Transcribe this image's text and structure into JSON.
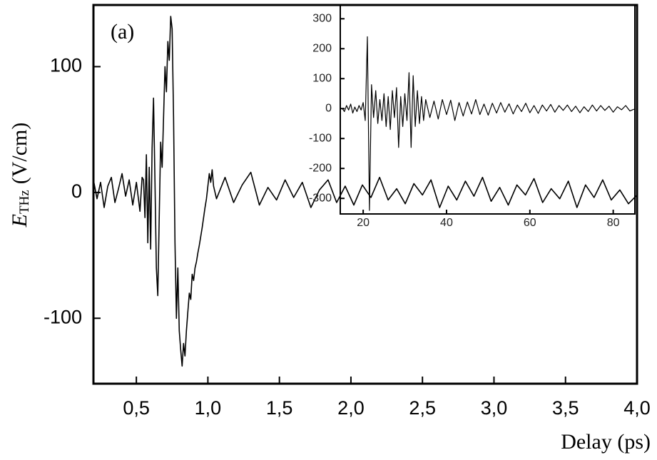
{
  "chart_data": [
    {
      "type": "line",
      "annotation": "(a)",
      "xlabel": "Delay (ps)",
      "ylabel": [
        "E",
        "THz",
        "(V/cm)"
      ],
      "xlim": [
        0.2,
        4.0
      ],
      "ylim": [
        -152,
        149
      ],
      "xticks": [
        {
          "value": 0.5,
          "label": "0,5"
        },
        {
          "value": 1.0,
          "label": "1,0"
        },
        {
          "value": 1.5,
          "label": "1,5"
        },
        {
          "value": 2.0,
          "label": "2,0"
        },
        {
          "value": 2.5,
          "label": "2,5"
        },
        {
          "value": 3.0,
          "label": "3,0"
        },
        {
          "value": 3.5,
          "label": "3,5"
        },
        {
          "value": 4.0,
          "label": "4,0"
        }
      ],
      "yticks": [
        -100,
        0,
        100
      ],
      "x": [
        0.2,
        0.225,
        0.25,
        0.275,
        0.3,
        0.325,
        0.35,
        0.375,
        0.4,
        0.425,
        0.45,
        0.475,
        0.5,
        0.525,
        0.54,
        0.55,
        0.56,
        0.57,
        0.58,
        0.59,
        0.6,
        0.61,
        0.62,
        0.63,
        0.64,
        0.65,
        0.66,
        0.67,
        0.68,
        0.69,
        0.7,
        0.71,
        0.72,
        0.73,
        0.74,
        0.75,
        0.76,
        0.77,
        0.78,
        0.79,
        0.8,
        0.81,
        0.82,
        0.83,
        0.84,
        0.85,
        0.86,
        0.87,
        0.88,
        0.89,
        0.9,
        0.91,
        0.92,
        0.93,
        0.94,
        0.95,
        0.96,
        0.97,
        0.98,
        0.99,
        1.0,
        1.01,
        1.02,
        1.03,
        1.04,
        1.06,
        1.12,
        1.18,
        1.24,
        1.3,
        1.36,
        1.42,
        1.48,
        1.54,
        1.6,
        1.66,
        1.72,
        1.78,
        1.84,
        1.9,
        1.96,
        2.02,
        2.08,
        2.14,
        2.2,
        2.26,
        2.32,
        2.38,
        2.44,
        2.5,
        2.56,
        2.62,
        2.68,
        2.74,
        2.8,
        2.86,
        2.92,
        2.98,
        3.04,
        3.1,
        3.16,
        3.22,
        3.28,
        3.34,
        3.4,
        3.46,
        3.52,
        3.58,
        3.64,
        3.7,
        3.76,
        3.82,
        3.88,
        3.94,
        4.0
      ],
      "series": [
        {
          "name": null,
          "color": "#000000",
          "values": [
            10,
            -5,
            8,
            -12,
            5,
            12,
            -8,
            3,
            15,
            -3,
            10,
            -10,
            8,
            -15,
            12,
            10,
            -20,
            30,
            -40,
            20,
            -45,
            35,
            75,
            10,
            -60,
            -82,
            -20,
            40,
            20,
            60,
            100,
            80,
            120,
            105,
            140,
            130,
            60,
            -40,
            -100,
            -60,
            -110,
            -125,
            -138,
            -120,
            -130,
            -110,
            -95,
            -80,
            -85,
            -65,
            -70,
            -60,
            -55,
            -48,
            -42,
            -35,
            -28,
            -20,
            -12,
            -5,
            5,
            15,
            8,
            18,
            5,
            -5,
            12,
            -8,
            6,
            16,
            -10,
            4,
            -6,
            10,
            -4,
            8,
            -12,
            2,
            10,
            -8,
            5,
            -10,
            6,
            -4,
            12,
            -6,
            3,
            -9,
            7,
            -2,
            10,
            -12,
            5,
            -6,
            9,
            -3,
            12,
            -7,
            4,
            -10,
            6,
            -2,
            11,
            -8,
            3,
            -5,
            9,
            -12,
            6,
            -4,
            10,
            -6,
            2,
            -9,
            -2
          ]
        }
      ]
    },
    {
      "type": "line",
      "xlim": [
        14.5,
        85.2
      ],
      "ylim": [
        -352,
        346
      ],
      "xticks": [
        20,
        40,
        60,
        80
      ],
      "yticks": [
        -300,
        -200,
        -100,
        0,
        100,
        200,
        300
      ],
      "x": [
        15,
        15.5,
        16,
        16.5,
        17,
        17.5,
        18,
        18.5,
        19,
        19.5,
        20,
        20.5,
        21,
        21.5,
        22,
        22.5,
        23,
        23.5,
        24,
        24.5,
        25,
        25.5,
        26,
        26.5,
        27,
        27.5,
        28,
        28.5,
        29,
        29.5,
        30,
        30.5,
        31,
        31.5,
        32,
        32.5,
        33,
        33.5,
        34,
        34.5,
        35,
        36,
        37,
        38,
        39,
        40,
        41,
        42,
        43,
        44,
        45,
        46,
        47,
        48,
        49,
        50,
        51,
        52,
        53,
        54,
        55,
        56,
        57,
        58,
        59,
        60,
        61,
        62,
        63,
        64,
        65,
        66,
        67,
        68,
        69,
        70,
        71,
        72,
        73,
        74,
        75,
        76,
        77,
        78,
        79,
        80,
        81,
        82,
        83,
        84,
        85
      ],
      "series": [
        {
          "name": null,
          "color": "#000000",
          "values": [
            0,
            -10,
            10,
            -5,
            15,
            -15,
            5,
            -10,
            10,
            -5,
            20,
            -40,
            240,
            -340,
            80,
            -30,
            60,
            -50,
            30,
            -40,
            50,
            -60,
            40,
            -70,
            60,
            -30,
            70,
            -130,
            40,
            -60,
            50,
            -40,
            120,
            -130,
            110,
            -60,
            60,
            -50,
            40,
            -40,
            30,
            -30,
            25,
            -35,
            30,
            -20,
            28,
            -40,
            20,
            -25,
            22,
            -18,
            30,
            -20,
            15,
            -22,
            18,
            -15,
            20,
            -12,
            16,
            -18,
            12,
            -10,
            18,
            -14,
            10,
            -16,
            12,
            -8,
            14,
            -12,
            10,
            -6,
            12,
            -10,
            8,
            -14,
            6,
            -10,
            12,
            -8,
            10,
            -6,
            8,
            -12,
            6,
            -4,
            10,
            -8,
            -2
          ]
        }
      ]
    }
  ]
}
